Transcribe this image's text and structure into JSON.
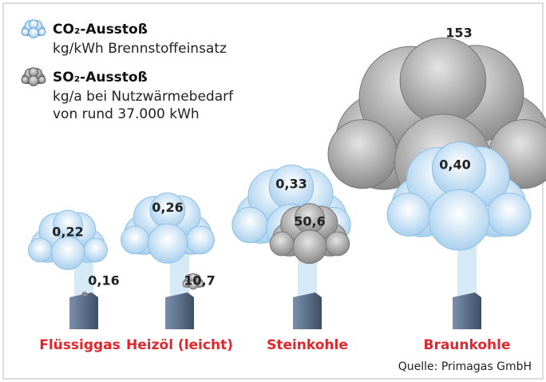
{
  "chart_data": {
    "type": "cloud",
    "categories": [
      "Flüssiggas",
      "Heizöl (leicht)",
      "Steinkohle",
      "Braunkohle"
    ],
    "series": [
      {
        "name": "CO₂-Ausstoß",
        "description": "kg/kWh Brennstoffeinsatz",
        "color": "#cfe6f7",
        "values": [
          0.22,
          0.26,
          0.33,
          0.4
        ],
        "value_labels": [
          "0,22",
          "0,26",
          "0,33",
          "0,40"
        ]
      },
      {
        "name": "SO₂-Ausstoß",
        "description": [
          "kg/a bei Nutzwärmebedarf",
          "von rund 37.000 kWh"
        ],
        "color": "#9a9a9a",
        "values": [
          0.16,
          10.7,
          50.6,
          153
        ],
        "value_labels": [
          "0,16",
          "10,7",
          "50,6",
          "153"
        ]
      }
    ],
    "source": "Quelle: Primagas GmbH"
  }
}
